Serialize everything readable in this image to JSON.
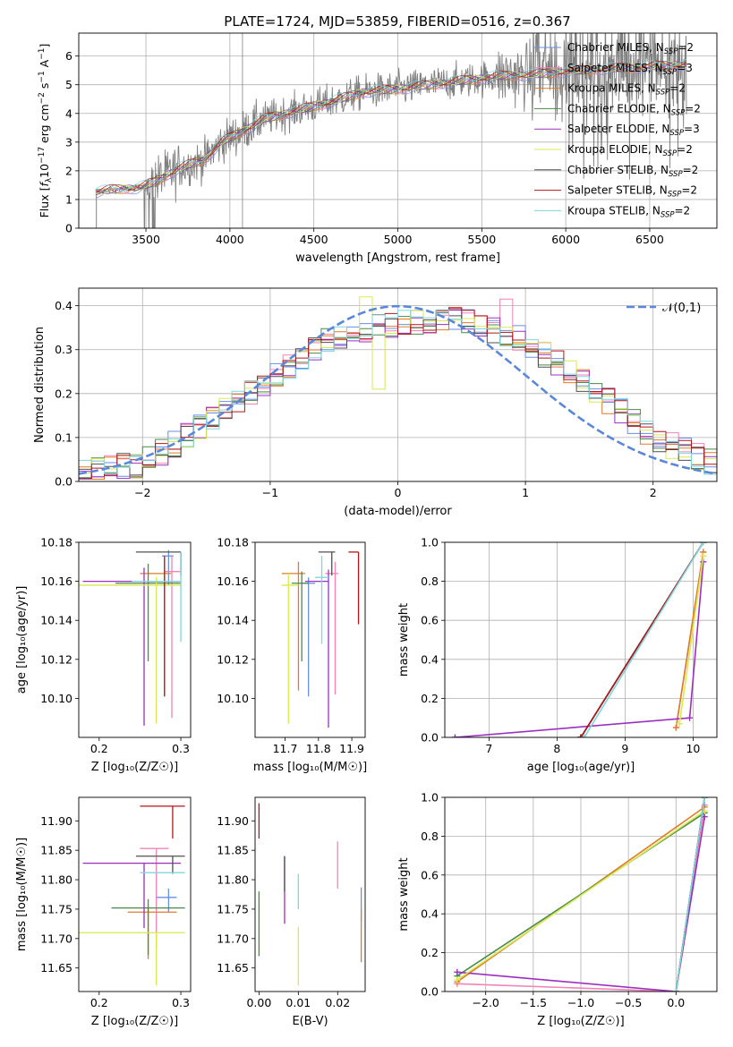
{
  "figure": {
    "title": "PLATE=1724, MJD=53859, FIBERID=0516, z=0.367"
  },
  "colors": {
    "model_colors": [
      "#6a8fe6",
      "#f282b8",
      "#e07b26",
      "#4a8a4a",
      "#9b30c0",
      "#d8ea52",
      "#505050",
      "#b3161a",
      "#7ed6dc"
    ],
    "observed_spectrum": "#808080",
    "normal_curve": "#5b87d9",
    "grid": "#b0b0b0"
  },
  "chart_data": [
    {
      "id": "spectrum",
      "type": "line",
      "title": "PLATE=1724, MJD=53859, FIBERID=0516, z=0.367",
      "xlabel": "wavelength [Angstrom, rest frame]",
      "ylabel": "Flux [f_λ 10^-17 erg cm^-2 s^-1 A^-1]",
      "xlim": [
        3100,
        6900
      ],
      "ylim": [
        0,
        6.8
      ],
      "xticks": [
        3500,
        4000,
        4500,
        5000,
        5500,
        6000,
        6500
      ],
      "yticks": [
        0,
        1,
        2,
        3,
        4,
        5,
        6
      ],
      "grid": true,
      "legend_position": "upper right",
      "legend": [
        "Chabrier MILES, N_SSP=2",
        "Salpeter MILES, N_SSP=3",
        "Kroupa MILES, N_SSP=2",
        "Chabrier ELODIE, N_SSP=2",
        "Salpeter ELODIE, N_SSP=3",
        "Kroupa ELODIE, N_SSP=2",
        "Chabrier STELIB, N_SSP=2",
        "Salpeter STELIB, N_SSP=2",
        "Kroupa STELIB, N_SSP=2"
      ],
      "continuum_anchor_points": {
        "wavelength": [
          3200,
          3300,
          3450,
          3550,
          3700,
          3850,
          3950,
          4050,
          4200,
          4400,
          4600,
          4800,
          5000,
          5200,
          5400,
          5600,
          5800,
          6000,
          6200,
          6400,
          6700
        ],
        "flux": [
          1.25,
          1.35,
          1.4,
          1.6,
          2.1,
          2.4,
          3.0,
          3.3,
          3.8,
          4.1,
          4.4,
          4.75,
          4.85,
          5.0,
          5.15,
          5.3,
          5.35,
          5.45,
          5.55,
          5.6,
          5.7
        ]
      }
    },
    {
      "id": "residuals",
      "type": "histogram",
      "xlabel": "(data-model)/error",
      "ylabel": "Normed distribution",
      "xlim": [
        -2.5,
        2.5
      ],
      "ylim": [
        0,
        0.44
      ],
      "xticks": [
        -2,
        -1,
        0,
        1,
        2
      ],
      "yticks": [
        0.0,
        0.1,
        0.2,
        0.3,
        0.4
      ],
      "grid": true,
      "legend": [
        "𝒩(0,1)"
      ],
      "legend_position": "upper right",
      "bin_width": 0.1,
      "approx_envelope": {
        "x": [
          -2.5,
          -2.0,
          -1.5,
          -1.0,
          -0.5,
          0.0,
          0.5,
          1.0,
          1.5,
          2.0,
          2.5
        ],
        "density": [
          0.02,
          0.04,
          0.13,
          0.23,
          0.33,
          0.36,
          0.37,
          0.32,
          0.22,
          0.1,
          0.04
        ]
      }
    },
    {
      "id": "age_vs_Z",
      "type": "scatter-errorbars",
      "xlabel": "Z [log10(Z/Z☉)]",
      "ylabel": "age [log10(age/yr)]",
      "xlim": [
        0.175,
        0.312
      ],
      "ylim": [
        10.08,
        10.18
      ],
      "xticks": [
        0.2,
        0.3
      ],
      "yticks": [
        10.1,
        10.12,
        10.14,
        10.16,
        10.18
      ],
      "points": [
        {
          "x": 0.285,
          "y": 10.173,
          "xerr": [
            0.008,
            0.006
          ],
          "yerr": [
            0.015,
            0.003
          ]
        },
        {
          "x": 0.289,
          "y": 10.165,
          "xerr": [
            0.01,
            0.01
          ],
          "yerr": [
            0.075,
            0.008
          ]
        },
        {
          "x": 0.28,
          "y": 10.164,
          "xerr": [
            0.03,
            0.008
          ],
          "yerr": [
            0.063,
            0.008
          ]
        },
        {
          "x": 0.26,
          "y": 10.159,
          "xerr": [
            0.04,
            0.04
          ],
          "yerr": [
            0.04,
            0.01
          ]
        },
        {
          "x": 0.255,
          "y": 10.16,
          "xerr": [
            0.075,
            0.045
          ],
          "yerr": [
            0.074,
            0.007
          ]
        },
        {
          "x": 0.27,
          "y": 10.158,
          "xerr": [
            0.095,
            0.03
          ],
          "yerr": [
            0.071,
            0.004
          ]
        },
        {
          "x": 0.3,
          "y": 10.175,
          "xerr": [
            0.055,
            0.0
          ],
          "yerr": [
            0.012,
            0.0
          ]
        },
        {
          "x": 0.28,
          "y": 10.16,
          "xerr": [
            0.02,
            0.02
          ],
          "yerr": [
            0.059,
            0.013
          ]
        },
        {
          "x": 0.3,
          "y": 10.16,
          "xerr": [
            0.06,
            0.0
          ],
          "yerr": [
            0.031,
            0.015
          ]
        }
      ]
    },
    {
      "id": "age_vs_mass",
      "type": "scatter-errorbars",
      "xlabel": "mass [log10(M/M☉)]",
      "ylim": [
        10.08,
        10.18
      ],
      "xlim": [
        11.61,
        11.94
      ],
      "xticks": [
        11.7,
        11.8,
        11.9
      ],
      "yticks": [
        10.1,
        10.12,
        10.14,
        10.16,
        10.18
      ],
      "points": [
        {
          "x": 11.77,
          "y": 10.159,
          "xerr": [
            0.02,
            0.02
          ],
          "yerr": [
            0.058,
            0.003
          ]
        },
        {
          "x": 11.85,
          "y": 10.164,
          "xerr": [
            0.03,
            0.01
          ],
          "yerr": [
            0.062,
            0.006
          ]
        },
        {
          "x": 11.74,
          "y": 10.164,
          "xerr": [
            0.05,
            0.02
          ],
          "yerr": [
            0.06,
            0.006
          ]
        },
        {
          "x": 11.75,
          "y": 10.159,
          "xerr": [
            0.03,
            0.02
          ],
          "yerr": [
            0.04,
            0.006
          ]
        },
        {
          "x": 11.83,
          "y": 10.16,
          "xerr": [
            0.07,
            0.0
          ],
          "yerr": [
            0.075,
            0.006
          ]
        },
        {
          "x": 11.71,
          "y": 10.158,
          "xerr": [
            0.02,
            0.03
          ],
          "yerr": [
            0.071,
            0.006
          ]
        },
        {
          "x": 11.84,
          "y": 10.175,
          "xerr": [
            0.04,
            0.01
          ],
          "yerr": [
            0.012,
            0.0
          ]
        },
        {
          "x": 11.92,
          "y": 10.175,
          "xerr": [
            0.03,
            0.0
          ],
          "yerr": [
            0.037,
            0.0
          ]
        },
        {
          "x": 11.81,
          "y": 10.162,
          "xerr": [
            0.02,
            0.02
          ],
          "yerr": [
            0.034,
            0.011
          ]
        }
      ]
    },
    {
      "id": "weight_vs_age",
      "type": "line",
      "xlabel": "age [log10(age/yr)]",
      "ylabel": "mass weight",
      "xlim": [
        6.35,
        10.35
      ],
      "ylim": [
        0,
        1
      ],
      "xticks": [
        7,
        8,
        9,
        10
      ],
      "yticks": [
        0.0,
        0.2,
        0.4,
        0.6,
        0.8,
        1.0
      ],
      "grid": true,
      "series": [
        {
          "x": [
            8.35,
            10.15
          ],
          "y": [
            0.0,
            1.0
          ]
        },
        {
          "x": [
            9.75,
            10.15
          ],
          "y": [
            0.05,
            0.95
          ]
        },
        {
          "x": [
            9.75,
            10.15
          ],
          "y": [
            0.05,
            0.95
          ]
        },
        {
          "x": [
            8.35,
            10.15
          ],
          "y": [
            0.0,
            1.0
          ]
        },
        {
          "x": [
            6.5,
            9.95,
            10.15
          ],
          "y": [
            0.0,
            0.1,
            0.9
          ]
        },
        {
          "x": [
            9.8,
            10.15
          ],
          "y": [
            0.07,
            0.93
          ]
        },
        {
          "x": [
            8.35,
            10.15
          ],
          "y": [
            0.0,
            1.0
          ]
        },
        {
          "x": [
            8.35,
            10.15
          ],
          "y": [
            0.0,
            1.0
          ]
        },
        {
          "x": [
            8.4,
            10.15
          ],
          "y": [
            0.0,
            1.0
          ]
        }
      ]
    },
    {
      "id": "mass_vs_Z",
      "type": "scatter-errorbars",
      "xlabel": "Z [log10(Z/Z☉)]",
      "ylabel": "mass [log10(M/M☉)]",
      "xlim": [
        0.175,
        0.312
      ],
      "ylim": [
        11.61,
        11.94
      ],
      "xticks": [
        0.2,
        0.3
      ],
      "yticks": [
        11.65,
        11.7,
        11.75,
        11.8,
        11.85,
        11.9
      ],
      "points": [
        {
          "x": 0.285,
          "y": 11.77,
          "xerr": [
            0.015,
            0.01
          ],
          "yerr": [
            0.025,
            0.015
          ]
        },
        {
          "x": 0.27,
          "y": 11.853,
          "xerr": [
            0.02,
            0.015
          ],
          "yerr": [
            0.17,
            0.0
          ]
        },
        {
          "x": 0.26,
          "y": 11.745,
          "xerr": [
            0.025,
            0.035
          ],
          "yerr": [
            0.08,
            0.01
          ]
        },
        {
          "x": 0.26,
          "y": 11.752,
          "xerr": [
            0.045,
            0.045
          ],
          "yerr": [
            0.08,
            0.015
          ]
        },
        {
          "x": 0.255,
          "y": 11.828,
          "xerr": [
            0.075,
            0.045
          ],
          "yerr": [
            0.11,
            0.0
          ]
        },
        {
          "x": 0.27,
          "y": 11.71,
          "xerr": [
            0.095,
            0.035
          ],
          "yerr": [
            0.09,
            0.0
          ]
        },
        {
          "x": 0.29,
          "y": 11.84,
          "xerr": [
            0.045,
            0.015
          ],
          "yerr": [
            0.03,
            0.0
          ]
        },
        {
          "x": 0.29,
          "y": 11.925,
          "xerr": [
            0.04,
            0.015
          ],
          "yerr": [
            0.055,
            0.0
          ]
        },
        {
          "x": 0.27,
          "y": 11.812,
          "xerr": [
            0.02,
            0.035
          ],
          "yerr": [
            0.0,
            0.0
          ]
        }
      ]
    },
    {
      "id": "mass_vs_ebv",
      "type": "scatter-errorbars",
      "xlabel": "E(B-V)",
      "xlim": [
        -0.001,
        0.027
      ],
      "ylim": [
        11.61,
        11.94
      ],
      "xticks": [
        0.0,
        0.01,
        0.02
      ],
      "yticks": [
        11.65,
        11.7,
        11.75,
        11.8,
        11.85,
        11.9
      ],
      "points": [
        {
          "x": 0.026,
          "y": 11.77,
          "yerr": [
            0.04,
            0.017
          ]
        },
        {
          "x": 0.02,
          "y": 11.82,
          "yerr": [
            0.035,
            0.045
          ]
        },
        {
          "x": 0.026,
          "y": 11.7,
          "yerr": [
            0.04,
            0.05
          ]
        },
        {
          "x": 0.0,
          "y": 11.72,
          "yerr": [
            0.05,
            0.06
          ]
        },
        {
          "x": 0.0065,
          "y": 11.78,
          "yerr": [
            0.055,
            0.06
          ]
        },
        {
          "x": 0.01,
          "y": 11.68,
          "yerr": [
            0.06,
            0.04
          ]
        },
        {
          "x": 0.0065,
          "y": 11.8,
          "yerr": [
            0.02,
            0.04
          ]
        },
        {
          "x": 0.0,
          "y": 11.91,
          "yerr": [
            0.04,
            0.02
          ]
        },
        {
          "x": 0.01,
          "y": 11.78,
          "yerr": [
            0.03,
            0.03
          ]
        }
      ]
    },
    {
      "id": "weight_vs_Z",
      "type": "line",
      "xlabel": "Z [log10(Z/Z☉)]",
      "ylabel": "mass weight",
      "xlim": [
        -2.43,
        0.43
      ],
      "ylim": [
        0,
        1
      ],
      "xticks": [
        -2.0,
        -1.5,
        -1.0,
        -0.5,
        0.0
      ],
      "yticks": [
        0.0,
        0.2,
        0.4,
        0.6,
        0.8,
        1.0
      ],
      "grid": true,
      "series": [
        {
          "x": [
            0.0,
            0.3
          ],
          "y": [
            0.0,
            1.0
          ]
        },
        {
          "x": [
            -2.3,
            0.0,
            0.3
          ],
          "y": [
            0.04,
            0.0,
            0.96
          ]
        },
        {
          "x": [
            -2.3,
            0.3
          ],
          "y": [
            0.05,
            0.95
          ]
        },
        {
          "x": [
            -2.3,
            0.3
          ],
          "y": [
            0.08,
            0.92
          ]
        },
        {
          "x": [
            -2.3,
            0.0,
            0.3
          ],
          "y": [
            0.1,
            0.0,
            0.9
          ]
        },
        {
          "x": [
            -2.3,
            0.3
          ],
          "y": [
            0.06,
            0.93
          ]
        },
        {
          "x": [
            0.0,
            0.3
          ],
          "y": [
            0.0,
            1.0
          ]
        },
        {
          "x": [
            0.0,
            0.3
          ],
          "y": [
            0.0,
            1.0
          ]
        },
        {
          "x": [
            0.0,
            0.3
          ],
          "y": [
            0.0,
            1.0
          ]
        }
      ]
    }
  ]
}
